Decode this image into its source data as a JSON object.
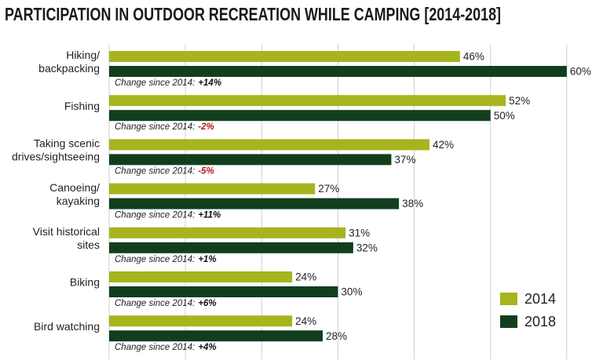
{
  "chart_data": {
    "type": "bar",
    "orientation": "horizontal",
    "title": "PARTICIPATION IN OUTDOOR RECREATION WHILE CAMPING [2014-2018]",
    "categories": [
      [
        "Hiking/",
        "backpacking"
      ],
      [
        "Fishing"
      ],
      [
        "Taking scenic",
        "drives/sightseeing"
      ],
      [
        "Canoeing/",
        "kayaking"
      ],
      [
        "Visit historical",
        "sites"
      ],
      [
        "Biking"
      ],
      [
        "Bird watching"
      ]
    ],
    "series": [
      {
        "name": "2014",
        "color": "#a6b51e",
        "values": [
          46,
          52,
          42,
          27,
          31,
          24,
          24
        ],
        "value_labels": [
          "46%",
          "52%",
          "42%",
          "27%",
          "31%",
          "24%",
          "24%"
        ]
      },
      {
        "name": "2018",
        "color": "#113f1e",
        "values": [
          60,
          50,
          37,
          38,
          32,
          30,
          28
        ],
        "value_labels": [
          "60%",
          "50%",
          "37%",
          "38%",
          "32%",
          "30%",
          "28%"
        ]
      }
    ],
    "change_label": "Change since 2014:",
    "changes": [
      "+14%",
      "-2%",
      "-5%",
      "+11%",
      "+1%",
      "+6%",
      "+4%"
    ],
    "xlim": [
      0,
      63
    ],
    "xticks": [
      0,
      10,
      20,
      30,
      40,
      50,
      60
    ],
    "grid": true,
    "legend": "lower right"
  }
}
